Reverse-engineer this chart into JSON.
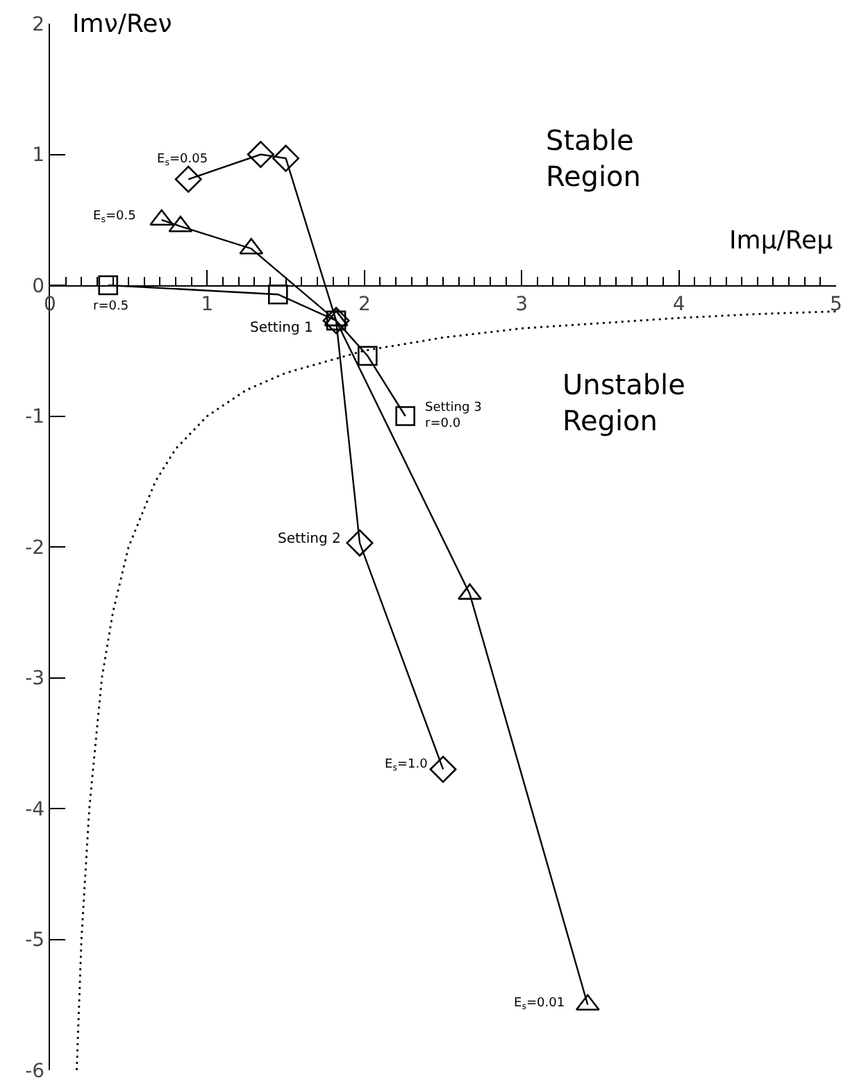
{
  "chart_data": {
    "type": "line",
    "xlabel": "Imμ/Reμ",
    "ylabel": "Imν/Reν",
    "xlim": [
      0,
      5
    ],
    "ylim": [
      -6,
      2
    ],
    "xticks": [
      0,
      {
        "value": 0.1,
        "label": null
      },
      {
        "value": 0.2,
        "label": null
      },
      {
        "value": 0.3,
        "label": null
      },
      {
        "value": 0.4,
        "label": null
      },
      {
        "value": 0.5,
        "label": null
      },
      {
        "value": 0.6,
        "label": null
      },
      {
        "value": 0.7,
        "label": null
      },
      {
        "value": 0.8,
        "label": null
      },
      {
        "value": 0.9,
        "label": null
      },
      1,
      {
        "value": 1.1,
        "label": null
      },
      {
        "value": 1.2,
        "label": null
      },
      {
        "value": 1.3,
        "label": null
      },
      {
        "value": 1.4,
        "label": null
      },
      {
        "value": 1.5,
        "label": null
      },
      {
        "value": 1.6,
        "label": null
      },
      {
        "value": 1.7,
        "label": null
      },
      {
        "value": 1.8,
        "label": null
      },
      {
        "value": 1.9,
        "label": null
      },
      2,
      {
        "value": 2.1,
        "label": null
      },
      {
        "value": 2.2,
        "label": null
      },
      {
        "value": 2.3,
        "label": null
      },
      {
        "value": 2.4,
        "label": null
      },
      {
        "value": 2.5,
        "label": null
      },
      {
        "value": 2.6,
        "label": null
      },
      {
        "value": 2.7,
        "label": null
      },
      {
        "value": 2.8,
        "label": null
      },
      {
        "value": 2.9,
        "label": null
      },
      3,
      {
        "value": 3.1,
        "label": null
      },
      {
        "value": 3.2,
        "label": null
      },
      {
        "value": 3.3,
        "label": null
      },
      {
        "value": 3.4,
        "label": null
      },
      {
        "value": 3.5,
        "label": null
      },
      {
        "value": 3.6,
        "label": null
      },
      {
        "value": 3.7,
        "label": null
      },
      {
        "value": 3.8,
        "label": null
      },
      {
        "value": 3.9,
        "label": null
      },
      4,
      {
        "value": 4.1,
        "label": null
      },
      {
        "value": 4.2,
        "label": null
      },
      {
        "value": 4.3,
        "label": null
      },
      {
        "value": 4.4,
        "label": null
      },
      {
        "value": 4.5,
        "label": null
      },
      {
        "value": 4.6,
        "label": null
      },
      {
        "value": 4.7,
        "label": null
      },
      {
        "value": 4.8,
        "label": null
      },
      {
        "value": 4.9,
        "label": null
      },
      5
    ],
    "yticks": [
      -6,
      -5,
      -4,
      -3,
      -2,
      -1,
      0,
      1,
      2
    ],
    "line_style": "solid",
    "series": [
      {
        "color": "#000000",
        "marker": "diamond",
        "x": [
          0.88,
          1.34,
          1.5,
          1.82,
          1.97,
          2.5
        ],
        "values": [
          0.81,
          1.0,
          0.97,
          -0.27,
          -1.97,
          -3.7
        ]
      },
      {
        "color": "#000000",
        "marker": "triangle",
        "x": [
          0.71,
          0.83,
          1.28,
          1.82,
          2.67,
          3.42
        ],
        "values": [
          0.5,
          0.45,
          0.28,
          -0.27,
          -2.36,
          -5.5
        ]
      },
      {
        "color": "#000000",
        "marker": "square",
        "x": [
          0.37,
          1.45,
          1.82,
          2.02,
          2.26
        ],
        "values": [
          0.0,
          -0.07,
          -0.27,
          -0.54,
          -1.0
        ]
      },
      {
        "color": "#000000",
        "marker": "none",
        "line_style": "dotted",
        "x": [
          0.17,
          0.2,
          0.25,
          0.33,
          0.4,
          0.5,
          0.67,
          0.8,
          1.0,
          1.25,
          1.5,
          2.0,
          2.5,
          3.0,
          3.5,
          4.0,
          4.5,
          5.0
        ],
        "values": [
          -6.0,
          -5.0,
          -4.0,
          -3.0,
          -2.5,
          -2.0,
          -1.5,
          -1.25,
          -1.0,
          -0.8,
          -0.67,
          -0.5,
          -0.4,
          -0.33,
          -0.29,
          -0.25,
          -0.22,
          -0.2
        ]
      }
    ],
    "annotations": [
      "Stable\nRegion",
      "Unstable\nRegion",
      {
        "text": "E$_{s}$=0.05",
        "x": 0.88,
        "y": 0.81
      },
      {
        "text": "E$_{s}$=0.5",
        "x": 0.71,
        "y": 0.5
      },
      {
        "text": "r=0.5",
        "x": 0.37,
        "y": 0.0
      },
      {
        "text": "Setting 1",
        "x": 1.82,
        "y": -0.27
      },
      {
        "text": "Setting 3\nr=0.0",
        "x": 2.26,
        "y": -1.0
      },
      {
        "text": "Setting 2",
        "x": 1.97,
        "y": -1.97
      },
      {
        "text": "E$_{s}$=1.0",
        "x": 2.5,
        "y": -3.7
      },
      {
        "text": "E$_{s}$=0.01",
        "x": 3.42,
        "y": -5.5
      }
    ]
  }
}
